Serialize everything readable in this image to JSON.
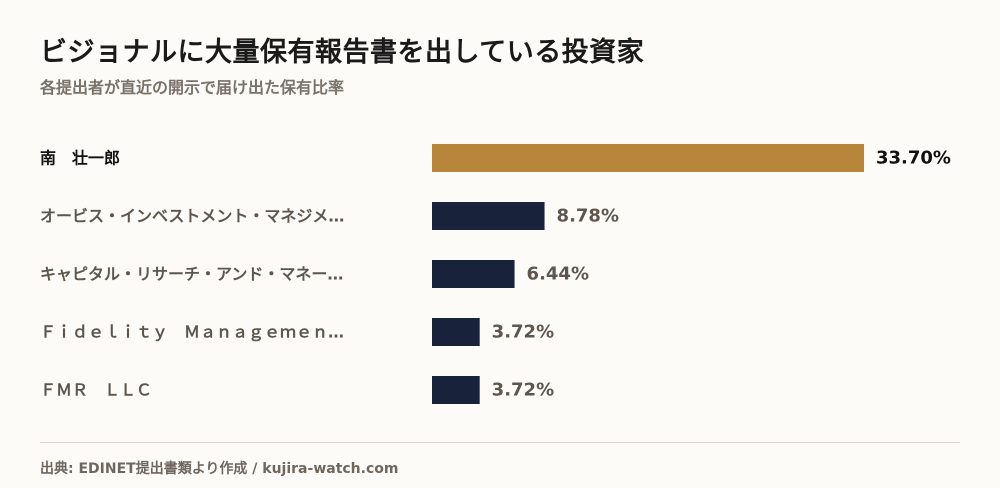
{
  "header": {
    "title": "ビジョナルに大量保有報告書を出している投資家",
    "subtitle": "各提出者が直近の開示で届け出た保有比率"
  },
  "footer": {
    "source": "出典: EDINET提出書類より作成 / kujira-watch.com"
  },
  "colors": {
    "highlight": "#b8863b",
    "default": "#18223a",
    "label_highlight": "#111111",
    "label_default": "#5e564c",
    "value_highlight": "#111111",
    "value_default": "#5e564c"
  },
  "chart_data": {
    "type": "bar",
    "orientation": "horizontal",
    "categories": [
      "南　壮一郎",
      "オービス・インベストメント・マネジメ…",
      "キャピタル・リサーチ・アンド・マネー…",
      "Ｆｉｄｅｌｉｔｙ　Ｍａｎａｇｅｍｅｎ…",
      "ＦＭＲ　ＬＬＣ"
    ],
    "values": [
      33.7,
      8.78,
      6.44,
      3.72,
      3.72
    ],
    "value_labels": [
      "33.70%",
      "8.78%",
      "6.44%",
      "3.72%",
      "3.72%"
    ],
    "highlight_index": 0,
    "xlim": [
      0,
      33.7
    ],
    "grid": false,
    "unit": "%"
  }
}
